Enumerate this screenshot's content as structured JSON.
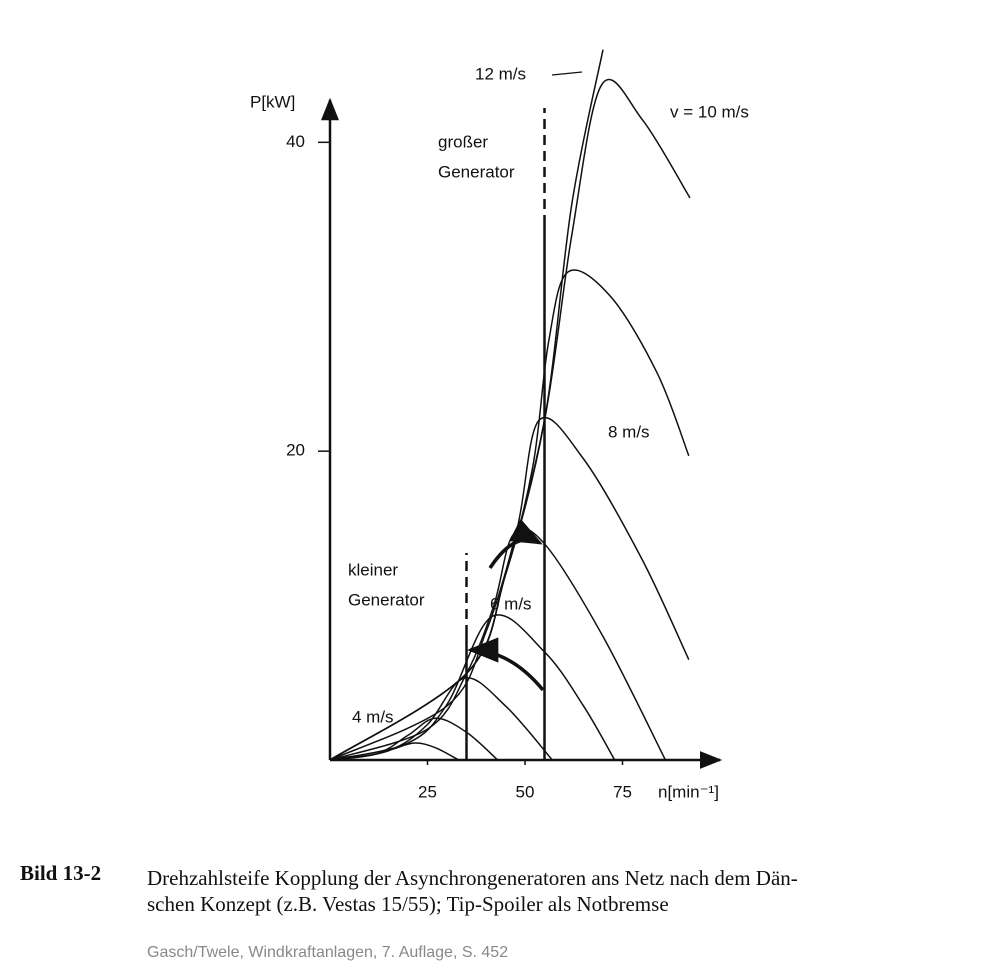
{
  "chart_data": {
    "type": "line",
    "color": "#111111",
    "ylabel": "P[kW]",
    "xlabel": "n[min⁻¹]",
    "xlim": [
      0,
      100
    ],
    "ylim": [
      0,
      43
    ],
    "xticks": [
      25,
      50,
      75
    ],
    "yticks": [
      20,
      40
    ],
    "generator_speeds": [
      35,
      55
    ],
    "annotations": [
      [
        "großer",
        "Generator"
      ],
      [
        "kleiner",
        "Generator"
      ]
    ],
    "series": [
      {
        "x": [
          0,
          10,
          16,
          21.7,
          27,
          33
        ],
        "values": [
          0,
          0.3,
          0.7,
          1.1,
          0.8,
          0
        ]
      },
      {
        "name": "4 m/s",
        "x": [
          0,
          12,
          20,
          27,
          35,
          43
        ],
        "values": [
          0,
          0.4,
          1.6,
          2.7,
          1.8,
          0
        ]
      },
      {
        "x": [
          0,
          15,
          25,
          34.4,
          45,
          57
        ],
        "values": [
          0,
          0.6,
          2.3,
          5.3,
          3.5,
          0
        ]
      },
      {
        "name": "6 m/s",
        "x": [
          0,
          20,
          30,
          41.6,
          55,
          65,
          73
        ],
        "values": [
          0,
          1.1,
          3.6,
          9.3,
          7,
          3.5,
          0
        ]
      },
      {
        "x": [
          0,
          25,
          35,
          42,
          47,
          55,
          70,
          86
        ],
        "values": [
          0,
          2,
          5.6,
          10,
          14.6,
          14,
          8,
          0
        ]
      },
      {
        "name": "8 m/s",
        "x": [
          0,
          30,
          40,
          48,
          53.6,
          65,
          80,
          92
        ],
        "values": [
          0,
          3.5,
          8.3,
          15,
          22,
          19.5,
          13,
          6.5
        ]
      },
      {
        "x": [
          0,
          35,
          45,
          52,
          56,
          61,
          72,
          84,
          92
        ],
        "values": [
          0,
          5.6,
          12,
          19,
          27,
          31.6,
          30,
          25,
          19.7
        ]
      },
      {
        "name": "v = 10 m/s",
        "x": [
          0,
          35,
          45,
          55,
          62,
          69.6,
          80,
          92.3
        ],
        "values": [
          0,
          5.6,
          12,
          22,
          34,
          43.7,
          41.5,
          36.4
        ]
      },
      {
        "name": "12 m/s",
        "x": [
          0,
          35,
          45,
          55,
          62,
          70
        ],
        "values": [
          0,
          5.6,
          12,
          22,
          36,
          46
        ]
      }
    ]
  },
  "caption": {
    "label": "Bild 13-2",
    "lines": [
      "Drehzahlsteife Kopplung der Asynchrongeneratoren ans Netz nach dem Dän-",
      "schen Konzept (z.B. Vestas 15/55); Tip-Spoiler als Notbremse"
    ],
    "source": "Gasch/Twele, Windkraftanlagen, 7. Auflage, S. 452"
  }
}
